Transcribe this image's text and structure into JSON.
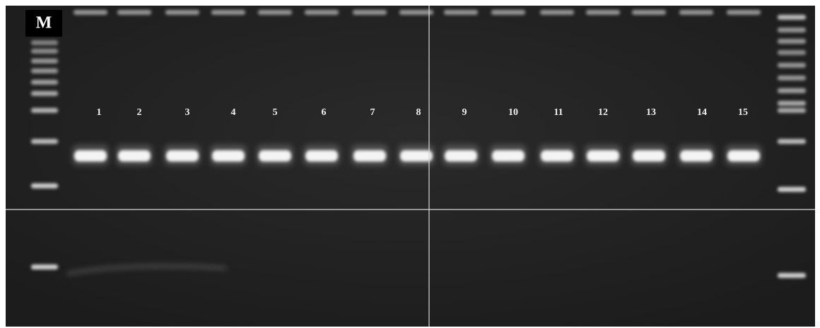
{
  "marker_label": "M",
  "lanes": [
    "1",
    "2",
    "3",
    "4",
    "5",
    "6",
    "7",
    "8",
    "9",
    "10",
    "11",
    "12",
    "13",
    "14",
    "15"
  ]
}
